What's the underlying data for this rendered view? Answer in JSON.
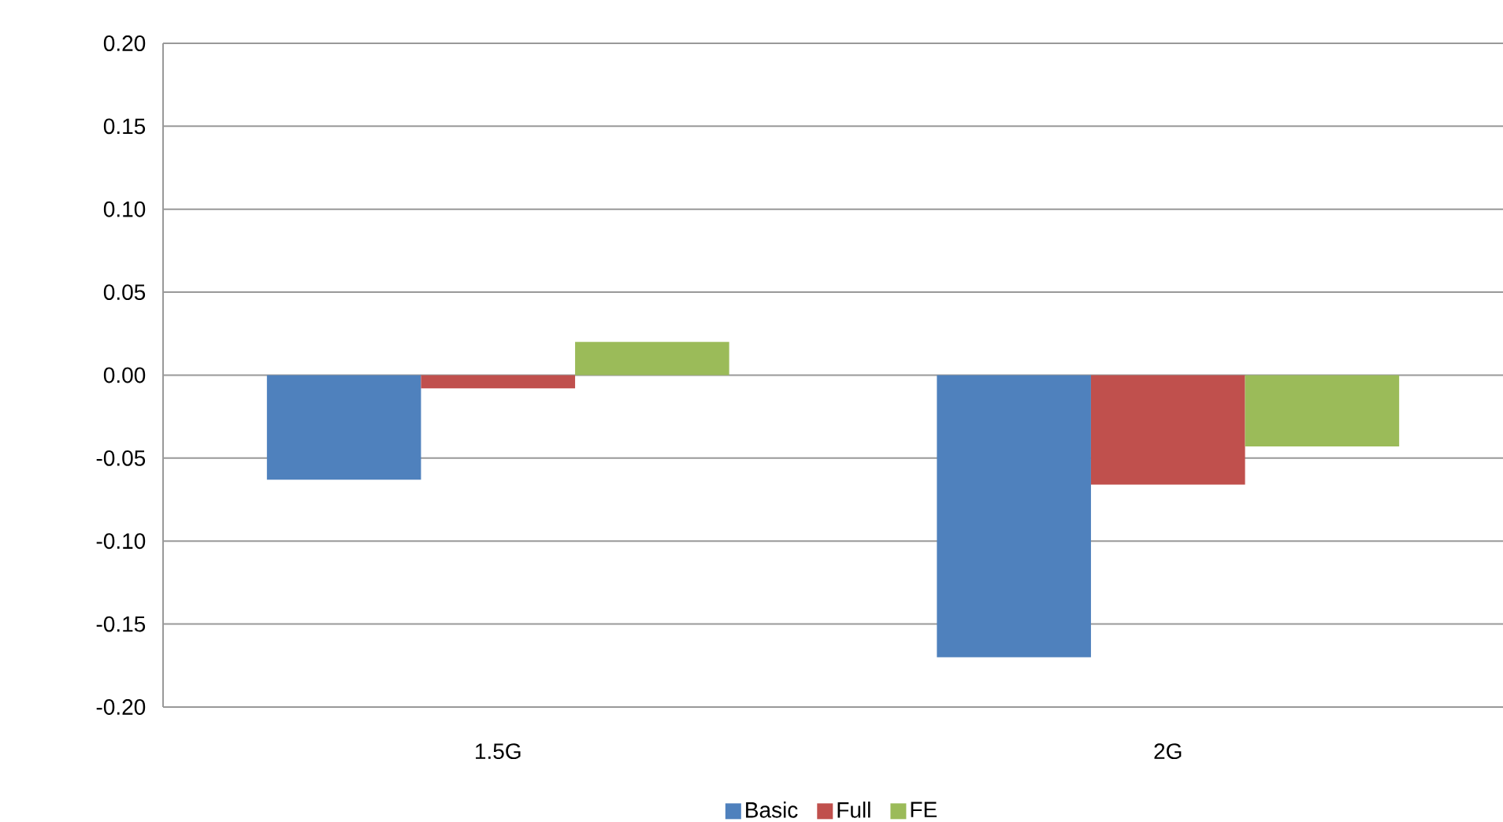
{
  "chart_data": {
    "type": "bar",
    "categories": [
      "1.5G",
      "2G"
    ],
    "series": [
      {
        "name": "Basic",
        "color": "#4f81bd",
        "values": [
          -0.063,
          -0.17
        ]
      },
      {
        "name": "Full",
        "color": "#c0504d",
        "values": [
          -0.008,
          -0.066
        ]
      },
      {
        "name": "FE",
        "color": "#9bbb59",
        "values": [
          0.02,
          -0.043
        ]
      }
    ],
    "ylim": [
      -0.2,
      0.2
    ],
    "yticks": [
      {
        "value": -0.2,
        "label": "-0.20"
      },
      {
        "value": -0.15,
        "label": "-0.15"
      },
      {
        "value": -0.1,
        "label": "-0.10"
      },
      {
        "value": -0.05,
        "label": "-0.05"
      },
      {
        "value": 0,
        "label": "0.00"
      },
      {
        "value": 0.05,
        "label": "0.05"
      },
      {
        "value": 0.1,
        "label": "0.10"
      },
      {
        "value": 0.15,
        "label": "0.15"
      },
      {
        "value": 0.2,
        "label": "0.20"
      }
    ],
    "grid": "y",
    "legend": "bottom"
  }
}
